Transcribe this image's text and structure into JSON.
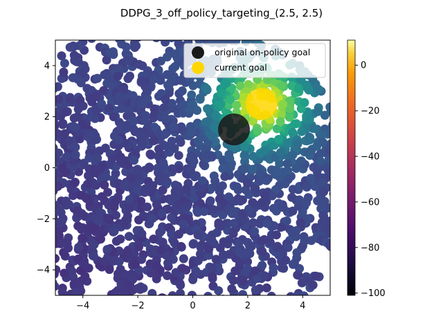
{
  "chart_data": {
    "type": "scatter",
    "title": "DDPG_3_off_policy_targeting_(2.5, 2.5)",
    "xlabel": "",
    "ylabel": "",
    "xlim": [
      -5,
      5
    ],
    "ylim": [
      -5,
      5
    ],
    "xticks": [
      -4,
      -2,
      0,
      2,
      4
    ],
    "yticks": [
      -4,
      -2,
      0,
      2,
      4
    ],
    "xtick_labels": [
      "−4",
      "−2",
      "0",
      "2",
      "4"
    ],
    "ytick_labels": [
      "−4",
      "−2",
      "0",
      "2",
      "4"
    ],
    "grid": false,
    "colormap": "viridis",
    "colorbar": {
      "range": [
        -101,
        11
      ],
      "ticks": [
        0,
        -20,
        -40,
        -60,
        -80,
        -100
      ],
      "tick_labels": [
        "0",
        "−20",
        "−40",
        "−60",
        "−80",
        "−100"
      ],
      "colormap": "inferno"
    },
    "value_field": {
      "description_of_trend": "values near -80 across most of the state space, rising toward the upper-right near the current goal",
      "background_value": -78,
      "peak_location": [
        2.5,
        2.5
      ],
      "peak_value": 8
    },
    "markers": [
      {
        "name": "original on-policy goal",
        "x": 1.5,
        "y": 1.5,
        "color": "#1a1a1a"
      },
      {
        "name": "current goal",
        "x": 2.5,
        "y": 2.5,
        "color": "#ffd700"
      }
    ],
    "legend": {
      "position": "upper right",
      "entries": [
        "original on-policy goal",
        "current goal"
      ]
    }
  }
}
